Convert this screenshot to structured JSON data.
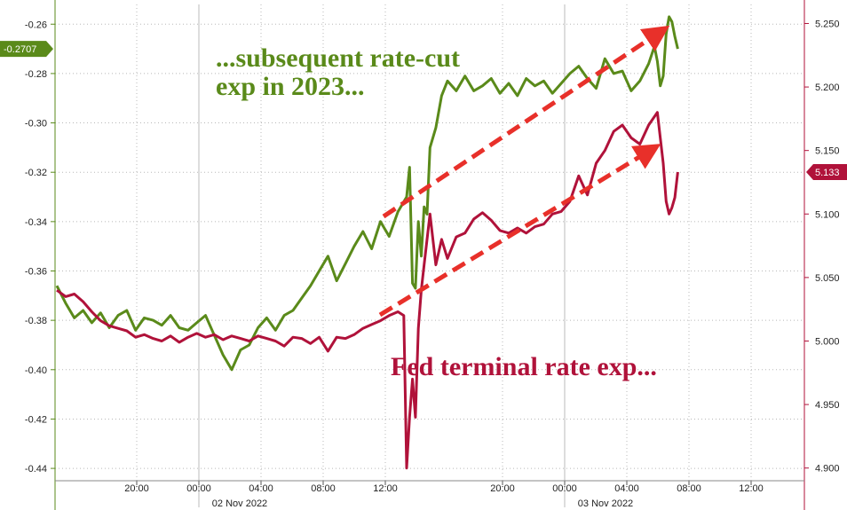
{
  "chart_data": {
    "type": "line",
    "title": "",
    "time_ticks": [
      "20:00",
      "00:00",
      "04:00",
      "08:00",
      "12:00",
      "20:00",
      "00:00",
      "04:00",
      "08:00",
      "12:00"
    ],
    "date_labels": [
      "02 Nov 2022",
      "03 Nov 2022"
    ],
    "left_axis": {
      "ticks": [
        "-0.26",
        "-0.28",
        "-0.30",
        "-0.32",
        "-0.34",
        "-0.36",
        "-0.38",
        "-0.40",
        "-0.42",
        "-0.44"
      ],
      "range": [
        -0.445,
        -0.252
      ],
      "color": "#5a8a1a"
    },
    "right_axis": {
      "ticks": [
        "5.250",
        "5.200",
        "5.150",
        "5.100",
        "5.050",
        "5.000",
        "4.950",
        "4.900"
      ],
      "range": [
        4.89,
        5.265
      ],
      "color": "#b0123a"
    },
    "series": [
      {
        "axis": "left",
        "color": "#5a8a1a",
        "last_value_label": "-0.2707",
        "points": [
          [
            0,
            -0.366
          ],
          [
            3,
            -0.373
          ],
          [
            6,
            -0.379
          ],
          [
            9,
            -0.376
          ],
          [
            12,
            -0.381
          ],
          [
            15,
            -0.377
          ],
          [
            18,
            -0.383
          ],
          [
            21,
            -0.378
          ],
          [
            24,
            -0.376
          ],
          [
            27,
            -0.384
          ],
          [
            30,
            -0.379
          ],
          [
            33,
            -0.38
          ],
          [
            36,
            -0.382
          ],
          [
            39,
            -0.378
          ],
          [
            42,
            -0.383
          ],
          [
            45,
            -0.384
          ],
          [
            48,
            -0.381
          ],
          [
            51,
            -0.378
          ],
          [
            54,
            -0.386
          ],
          [
            57,
            -0.394
          ],
          [
            60,
            -0.4
          ],
          [
            63,
            -0.392
          ],
          [
            66,
            -0.39
          ],
          [
            69,
            -0.383
          ],
          [
            72,
            -0.379
          ],
          [
            75,
            -0.384
          ],
          [
            78,
            -0.378
          ],
          [
            81,
            -0.376
          ],
          [
            84,
            -0.371
          ],
          [
            87,
            -0.366
          ],
          [
            90,
            -0.36
          ],
          [
            93,
            -0.354
          ],
          [
            96,
            -0.364
          ],
          [
            99,
            -0.357
          ],
          [
            102,
            -0.35
          ],
          [
            105,
            -0.344
          ],
          [
            108,
            -0.351
          ],
          [
            111,
            -0.34
          ],
          [
            114,
            -0.346
          ],
          [
            117,
            -0.336
          ],
          [
            120,
            -0.33
          ],
          [
            121,
            -0.318
          ],
          [
            122,
            -0.365
          ],
          [
            123,
            -0.367
          ],
          [
            124,
            -0.34
          ],
          [
            125,
            -0.354
          ],
          [
            126,
            -0.334
          ],
          [
            127,
            -0.337
          ],
          [
            128,
            -0.31
          ],
          [
            130,
            -0.302
          ],
          [
            132,
            -0.289
          ],
          [
            134,
            -0.283
          ],
          [
            137,
            -0.287
          ],
          [
            140,
            -0.281
          ],
          [
            143,
            -0.287
          ],
          [
            146,
            -0.285
          ],
          [
            149,
            -0.282
          ],
          [
            152,
            -0.288
          ],
          [
            155,
            -0.284
          ],
          [
            158,
            -0.289
          ],
          [
            161,
            -0.282
          ],
          [
            164,
            -0.285
          ],
          [
            167,
            -0.283
          ],
          [
            170,
            -0.288
          ],
          [
            173,
            -0.284
          ],
          [
            176,
            -0.28
          ],
          [
            179,
            -0.277
          ],
          [
            182,
            -0.282
          ],
          [
            185,
            -0.286
          ],
          [
            188,
            -0.274
          ],
          [
            191,
            -0.28
          ],
          [
            194,
            -0.279
          ],
          [
            197,
            -0.287
          ],
          [
            200,
            -0.283
          ],
          [
            203,
            -0.276
          ],
          [
            205,
            -0.269
          ],
          [
            206,
            -0.275
          ],
          [
            207,
            -0.285
          ],
          [
            208,
            -0.281
          ],
          [
            209,
            -0.264
          ],
          [
            210,
            -0.257
          ],
          [
            211,
            -0.259
          ],
          [
            212,
            -0.265
          ],
          [
            213,
            -0.27
          ]
        ]
      },
      {
        "axis": "right",
        "color": "#b0123a",
        "last_value_label": "5.133",
        "points": [
          [
            0,
            5.04
          ],
          [
            3,
            5.035
          ],
          [
            6,
            5.037
          ],
          [
            9,
            5.031
          ],
          [
            12,
            5.023
          ],
          [
            15,
            5.016
          ],
          [
            18,
            5.012
          ],
          [
            21,
            5.01
          ],
          [
            24,
            5.008
          ],
          [
            27,
            5.003
          ],
          [
            30,
            5.005
          ],
          [
            33,
            5.002
          ],
          [
            36,
            5.0
          ],
          [
            39,
            5.004
          ],
          [
            42,
            4.999
          ],
          [
            45,
            5.003
          ],
          [
            48,
            5.006
          ],
          [
            51,
            5.003
          ],
          [
            54,
            5.005
          ],
          [
            57,
            5.001
          ],
          [
            60,
            5.004
          ],
          [
            63,
            5.002
          ],
          [
            66,
            5.0
          ],
          [
            69,
            5.004
          ],
          [
            72,
            5.002
          ],
          [
            75,
            5.0
          ],
          [
            78,
            4.996
          ],
          [
            81,
            5.003
          ],
          [
            84,
            5.002
          ],
          [
            87,
            4.998
          ],
          [
            90,
            5.003
          ],
          [
            93,
            4.992
          ],
          [
            96,
            5.003
          ],
          [
            99,
            5.002
          ],
          [
            102,
            5.005
          ],
          [
            105,
            5.01
          ],
          [
            108,
            5.013
          ],
          [
            111,
            5.016
          ],
          [
            114,
            5.02
          ],
          [
            117,
            5.023
          ],
          [
            119,
            5.02
          ],
          [
            120,
            4.9
          ],
          [
            121,
            4.94
          ],
          [
            122,
            4.97
          ],
          [
            123,
            4.94
          ],
          [
            124,
            5.01
          ],
          [
            125,
            5.04
          ],
          [
            126,
            5.06
          ],
          [
            127,
            5.08
          ],
          [
            128,
            5.1
          ],
          [
            130,
            5.06
          ],
          [
            132,
            5.08
          ],
          [
            134,
            5.065
          ],
          [
            137,
            5.082
          ],
          [
            140,
            5.085
          ],
          [
            143,
            5.096
          ],
          [
            146,
            5.101
          ],
          [
            149,
            5.095
          ],
          [
            152,
            5.087
          ],
          [
            155,
            5.085
          ],
          [
            158,
            5.089
          ],
          [
            161,
            5.085
          ],
          [
            164,
            5.09
          ],
          [
            167,
            5.092
          ],
          [
            170,
            5.1
          ],
          [
            173,
            5.102
          ],
          [
            176,
            5.11
          ],
          [
            179,
            5.13
          ],
          [
            182,
            5.115
          ],
          [
            185,
            5.14
          ],
          [
            188,
            5.15
          ],
          [
            191,
            5.165
          ],
          [
            194,
            5.17
          ],
          [
            197,
            5.16
          ],
          [
            200,
            5.155
          ],
          [
            203,
            5.17
          ],
          [
            206,
            5.18
          ],
          [
            207,
            5.16
          ],
          [
            208,
            5.14
          ],
          [
            209,
            5.11
          ],
          [
            210,
            5.1
          ],
          [
            211,
            5.105
          ],
          [
            212,
            5.113
          ],
          [
            213,
            5.133
          ]
        ]
      }
    ],
    "annotations": [
      {
        "lines": [
          "...subsequent rate-cut",
          "exp in 2023..."
        ],
        "color": "#5a8a1a"
      },
      {
        "lines": [
          "Fed terminal rate exp..."
        ],
        "color": "#b0123a"
      }
    ],
    "arrows_color": "#e8302a",
    "grid": true
  }
}
